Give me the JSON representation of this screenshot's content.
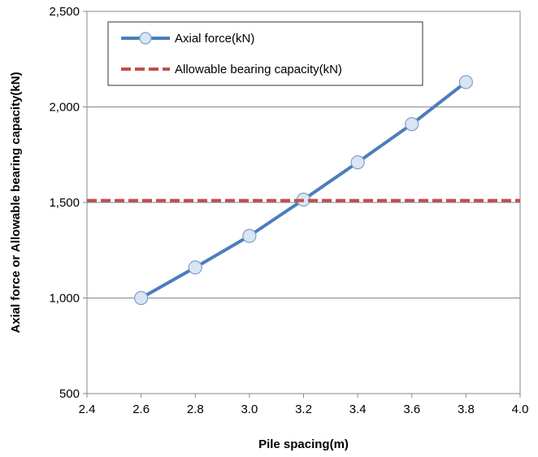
{
  "chart_data": {
    "type": "line",
    "xlabel": "Pile spacing(m)",
    "ylabel": "Axial force or Allowable bearing capacity(kN)",
    "xlim": [
      2.4,
      4.0
    ],
    "ylim": [
      500,
      2500
    ],
    "x_ticks": [
      "2.4",
      "2.6",
      "2.8",
      "3.0",
      "3.2",
      "3.4",
      "3.6",
      "3.8",
      "4.0"
    ],
    "y_ticks": [
      "500",
      "1,000",
      "1,500",
      "2,000",
      "2,500"
    ],
    "grid": "horizontal",
    "legend_position": "top-left",
    "series": [
      {
        "name": "Axial force(kN)",
        "style": "solid-with-circle-markers",
        "color": "#4a7ebb",
        "marker_fill": "#d9e5f3",
        "x": [
          2.6,
          2.8,
          3.0,
          3.2,
          3.4,
          3.6,
          3.8
        ],
        "y": [
          1000,
          1160,
          1325,
          1515,
          1710,
          1910,
          2130
        ]
      },
      {
        "name": "Allowable bearing capacity(kN)",
        "style": "dashed",
        "color": "#c0504d",
        "x": [
          2.4,
          4.0
        ],
        "y": [
          1510,
          1510
        ]
      }
    ]
  }
}
